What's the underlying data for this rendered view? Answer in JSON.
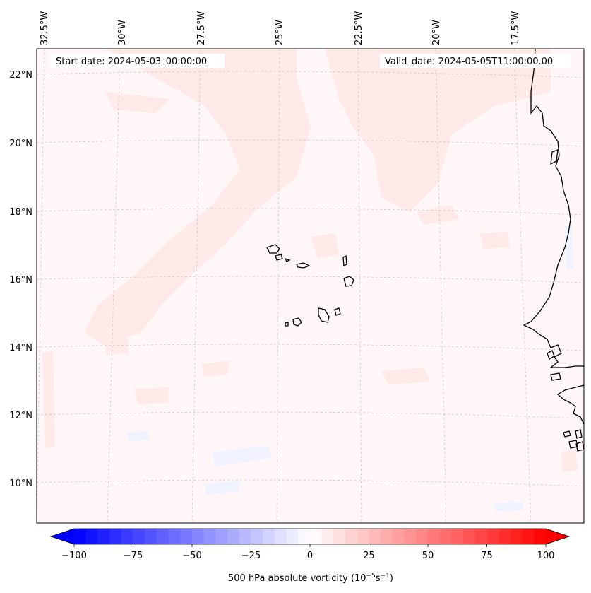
{
  "map": {
    "start_date_label": "Start date: 2024-05-03_00:00:00",
    "valid_date_label": "Valid_date: 2024-05-05T11:00:00.00",
    "lon_labels": [
      "32.5°W",
      "30°W",
      "27.5°W",
      "25°W",
      "22.5°W",
      "20°W",
      "17.5°W"
    ],
    "lat_labels": [
      "22°N",
      "20°N",
      "18°N",
      "16°N",
      "14°N",
      "12°N",
      "10°N"
    ],
    "field_colors": {
      "background": "#fff7f7",
      "light_red": "#ffe9e9",
      "light_blue": "#f0f3ff"
    }
  },
  "colorbar": {
    "ticks": [
      "−100",
      "−75",
      "−50",
      "−25",
      "0",
      "25",
      "50",
      "75",
      "100"
    ],
    "label": "500 hPa absolute vorticity (10",
    "label_exp1": "−5",
    "label_mid": "s",
    "label_exp2": "−1",
    "label_end": ")",
    "range": [
      -100,
      100
    ],
    "levels": 40,
    "colormap": "bwr",
    "extend": "both"
  }
}
